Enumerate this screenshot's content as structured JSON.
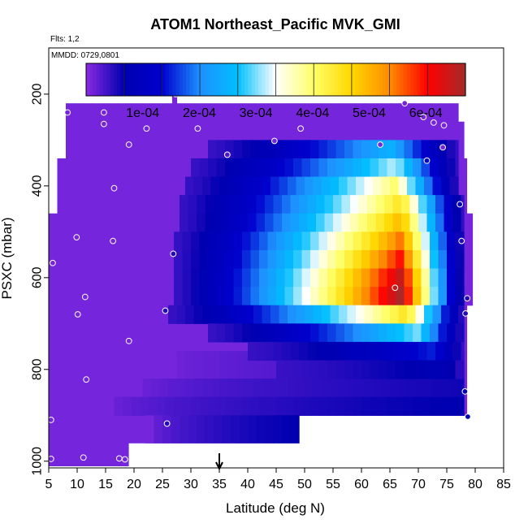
{
  "chart_data": {
    "type": "heatmap",
    "title": "ATOM1 Northeast_Pacific MVK_GMI",
    "subtitle": "Flts: 1,2",
    "annotation": "MMDD: 0729,0801",
    "xlabel": "Latitude (deg N)",
    "ylabel": "PSXC (mbar)",
    "xlim": [
      5,
      85
    ],
    "ylim": [
      1000,
      100
    ],
    "y_reversed": true,
    "x_ticks": [
      5,
      10,
      15,
      20,
      25,
      30,
      35,
      40,
      45,
      50,
      55,
      60,
      65,
      70,
      75,
      80,
      85
    ],
    "y_ticks": [
      200,
      400,
      600,
      800,
      1000
    ],
    "colorbar": {
      "range": [
        0,
        0.00067
      ],
      "tick_values": [
        0.0001,
        0.0002,
        0.0003,
        0.0004,
        0.0005,
        0.0006
      ],
      "tick_labels": [
        "1e-04",
        "2e-04",
        "3e-04",
        "4e-04",
        "5e-04",
        "6e-04"
      ],
      "placement": "top-inside",
      "colors": [
        "#8a2be2",
        "#0000b0",
        "#0000cd",
        "#1e90ff",
        "#00bfff",
        "#ffffff",
        "#ffff66",
        "#ffd700",
        "#ff8c00",
        "#ff0000",
        "#a52a2a"
      ]
    },
    "marker_arrow_x": 35,
    "background_value": 1e-05,
    "extent_bands": [
      {
        "p_top": 160,
        "p_bot": 200,
        "lat_from": 26.7,
        "lat_to": 27.5
      },
      {
        "p_top": 200,
        "p_bot": 220,
        "lat_from": 26.7,
        "lat_to": 27.5
      },
      {
        "p_top": 220,
        "p_bot": 260,
        "lat_from": 8,
        "lat_to": 77
      },
      {
        "p_top": 260,
        "p_bot": 340,
        "lat_from": 8,
        "lat_to": 78
      },
      {
        "p_top": 340,
        "p_bot": 460,
        "lat_from": 6.5,
        "lat_to": 78.5
      },
      {
        "p_top": 460,
        "p_bot": 660,
        "lat_from": 5,
        "lat_to": 79.5
      },
      {
        "p_top": 660,
        "p_bot": 760,
        "lat_from": 5,
        "lat_to": 78.5
      },
      {
        "p_top": 760,
        "p_bot": 900,
        "lat_from": 5,
        "lat_to": 78.5
      },
      {
        "p_top": 900,
        "p_bot": 960,
        "lat_from": 5,
        "lat_to": 49
      },
      {
        "p_top": 960,
        "p_bot": 1010,
        "lat_from": 5,
        "lat_to": 19
      }
    ],
    "plume": {
      "layers": [
        {
          "p_top": 300,
          "p_bot": 340,
          "lat_from": 33,
          "lat_to": 77,
          "peak": 0.00025,
          "peak_lat": 65
        },
        {
          "p_top": 340,
          "p_bot": 380,
          "lat_from": 30,
          "lat_to": 77,
          "peak": 0.00032,
          "peak_lat": 66
        },
        {
          "p_top": 380,
          "p_bot": 420,
          "lat_from": 29,
          "lat_to": 77,
          "peak": 0.0004,
          "peak_lat": 66
        },
        {
          "p_top": 420,
          "p_bot": 460,
          "lat_from": 28,
          "lat_to": 78,
          "peak": 0.00045,
          "peak_lat": 67
        },
        {
          "p_top": 460,
          "p_bot": 500,
          "lat_from": 28,
          "lat_to": 78,
          "peak": 0.0005,
          "peak_lat": 67
        },
        {
          "p_top": 500,
          "p_bot": 540,
          "lat_from": 27,
          "lat_to": 78,
          "peak": 0.00055,
          "peak_lat": 67
        },
        {
          "p_top": 540,
          "p_bot": 580,
          "lat_from": 27,
          "lat_to": 78,
          "peak": 0.0006,
          "peak_lat": 67
        },
        {
          "p_top": 580,
          "p_bot": 620,
          "lat_from": 27,
          "lat_to": 78,
          "peak": 0.00065,
          "peak_lat": 67
        },
        {
          "p_top": 620,
          "p_bot": 660,
          "lat_from": 27,
          "lat_to": 78,
          "peak": 0.00067,
          "peak_lat": 67
        },
        {
          "p_top": 660,
          "p_bot": 700,
          "lat_from": 26,
          "lat_to": 78,
          "peak": 0.00045,
          "peak_lat": 68
        },
        {
          "p_top": 700,
          "p_bot": 740,
          "lat_from": 33,
          "lat_to": 78,
          "peak": 0.0003,
          "peak_lat": 70
        },
        {
          "p_top": 740,
          "p_bot": 780,
          "lat_from": 40,
          "lat_to": 78,
          "peak": 0.00015,
          "peak_lat": 73
        },
        {
          "p_top": 780,
          "p_bot": 820,
          "lat_from": 45,
          "lat_to": 78,
          "peak": 8e-05,
          "peak_lat": 75
        }
      ]
    },
    "low_layers": [
      {
        "p_top": 760,
        "p_bot": 820,
        "lat_from": 26,
        "lat_to": 78,
        "value": 4e-05
      },
      {
        "p_top": 820,
        "p_bot": 860,
        "lat_from": 20,
        "lat_to": 78,
        "value": 6e-05
      },
      {
        "p_top": 860,
        "p_bot": 900,
        "lat_from": 15,
        "lat_to": 78,
        "value": 7e-05
      },
      {
        "p_top": 900,
        "p_bot": 960,
        "lat_from": 22,
        "lat_to": 49,
        "value": 7e-05
      }
    ],
    "observations": [
      {
        "lat": 27.3,
        "p": 200,
        "value": 1e-05
      },
      {
        "lat": 8.3,
        "p": 240,
        "value": 1e-05
      },
      {
        "lat": 14.7,
        "p": 240,
        "value": 1e-05
      },
      {
        "lat": 14.7,
        "p": 265,
        "value": 1e-05
      },
      {
        "lat": 22.2,
        "p": 275,
        "value": 1e-05
      },
      {
        "lat": 31.2,
        "p": 275,
        "value": 1e-05
      },
      {
        "lat": 49.3,
        "p": 275,
        "value": 1e-05
      },
      {
        "lat": 67.6,
        "p": 220,
        "value": 1e-05
      },
      {
        "lat": 70.9,
        "p": 250,
        "value": 1e-05
      },
      {
        "lat": 72.7,
        "p": 262,
        "value": 1e-05
      },
      {
        "lat": 74.5,
        "p": 268,
        "value": 1e-05
      },
      {
        "lat": 19.1,
        "p": 310,
        "value": 1e-05
      },
      {
        "lat": 44.7,
        "p": 302,
        "value": 1e-05
      },
      {
        "lat": 63.3,
        "p": 310,
        "value": 1e-05
      },
      {
        "lat": 74.3,
        "p": 316,
        "value": 1e-05
      },
      {
        "lat": 36.4,
        "p": 332,
        "value": 3e-05
      },
      {
        "lat": 71.5,
        "p": 345,
        "value": 0.0001
      },
      {
        "lat": 16.5,
        "p": 405,
        "value": 1e-05
      },
      {
        "lat": 77.3,
        "p": 440,
        "value": 0.0001
      },
      {
        "lat": 9.9,
        "p": 512,
        "value": 1e-05
      },
      {
        "lat": 16.3,
        "p": 520,
        "value": 1e-05
      },
      {
        "lat": 77.6,
        "p": 520,
        "value": 5e-05
      },
      {
        "lat": 26.9,
        "p": 548,
        "value": 5e-05
      },
      {
        "lat": 5.7,
        "p": 568,
        "value": 1e-05
      },
      {
        "lat": 65.9,
        "p": 622,
        "value": 0.00065
      },
      {
        "lat": 11.4,
        "p": 642,
        "value": 1e-05
      },
      {
        "lat": 78.6,
        "p": 645,
        "value": 5e-05
      },
      {
        "lat": 10.1,
        "p": 680,
        "value": 1e-05
      },
      {
        "lat": 25.5,
        "p": 672,
        "value": 5e-05
      },
      {
        "lat": 78.3,
        "p": 678,
        "value": 5e-05
      },
      {
        "lat": 19.1,
        "p": 738,
        "value": 1e-05
      },
      {
        "lat": 11.6,
        "p": 822,
        "value": 1e-05
      },
      {
        "lat": 78.2,
        "p": 848,
        "value": 8e-05
      },
      {
        "lat": 5.4,
        "p": 910,
        "value": 1e-05
      },
      {
        "lat": 25.8,
        "p": 918,
        "value": 5e-05
      },
      {
        "lat": 78.7,
        "p": 903,
        "value": 8e-05
      },
      {
        "lat": 5.4,
        "p": 995,
        "value": 1e-05
      },
      {
        "lat": 11.1,
        "p": 992,
        "value": 1e-05
      },
      {
        "lat": 17.4,
        "p": 994,
        "value": 1e-05
      },
      {
        "lat": 18.4,
        "p": 996,
        "value": 1e-05
      }
    ]
  }
}
